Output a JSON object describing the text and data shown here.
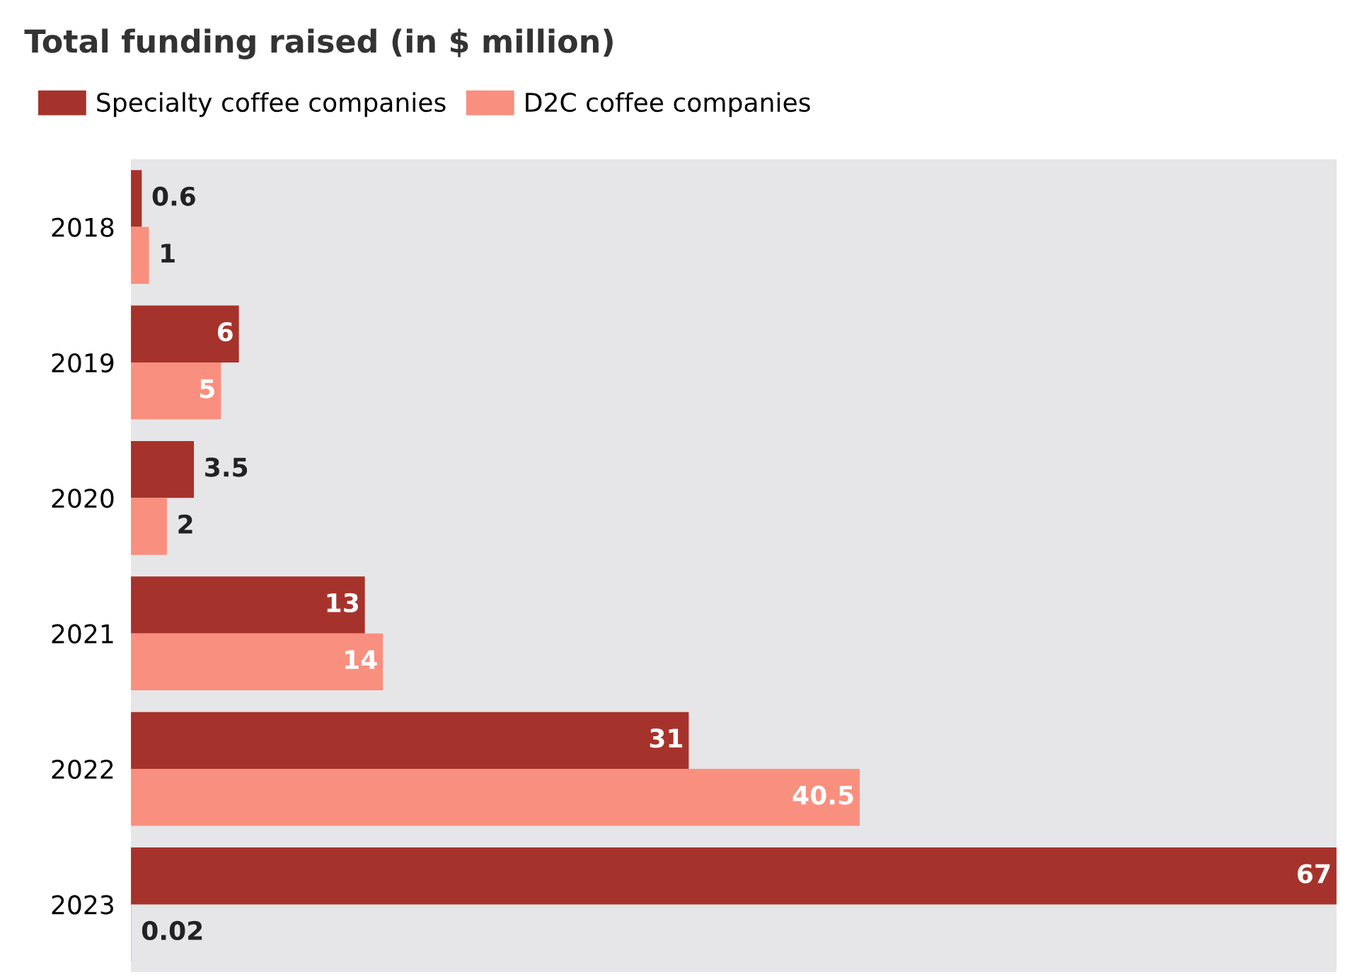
{
  "chart_data": {
    "type": "bar",
    "orientation": "horizontal",
    "title": "Total funding raised (in $ million)",
    "categories": [
      "2018",
      "2019",
      "2020",
      "2021",
      "2022",
      "2023"
    ],
    "series": [
      {
        "name": "Specialty coffee companies",
        "color": "#a6332b",
        "values": [
          0.6,
          6,
          3.5,
          13,
          31,
          67
        ]
      },
      {
        "name": "D2C coffee companies",
        "color": "#f98f7f",
        "values": [
          1,
          5,
          2,
          14,
          40.5,
          0.02
        ]
      }
    ],
    "data_labels": true,
    "legend": "top left",
    "grid": false
  }
}
